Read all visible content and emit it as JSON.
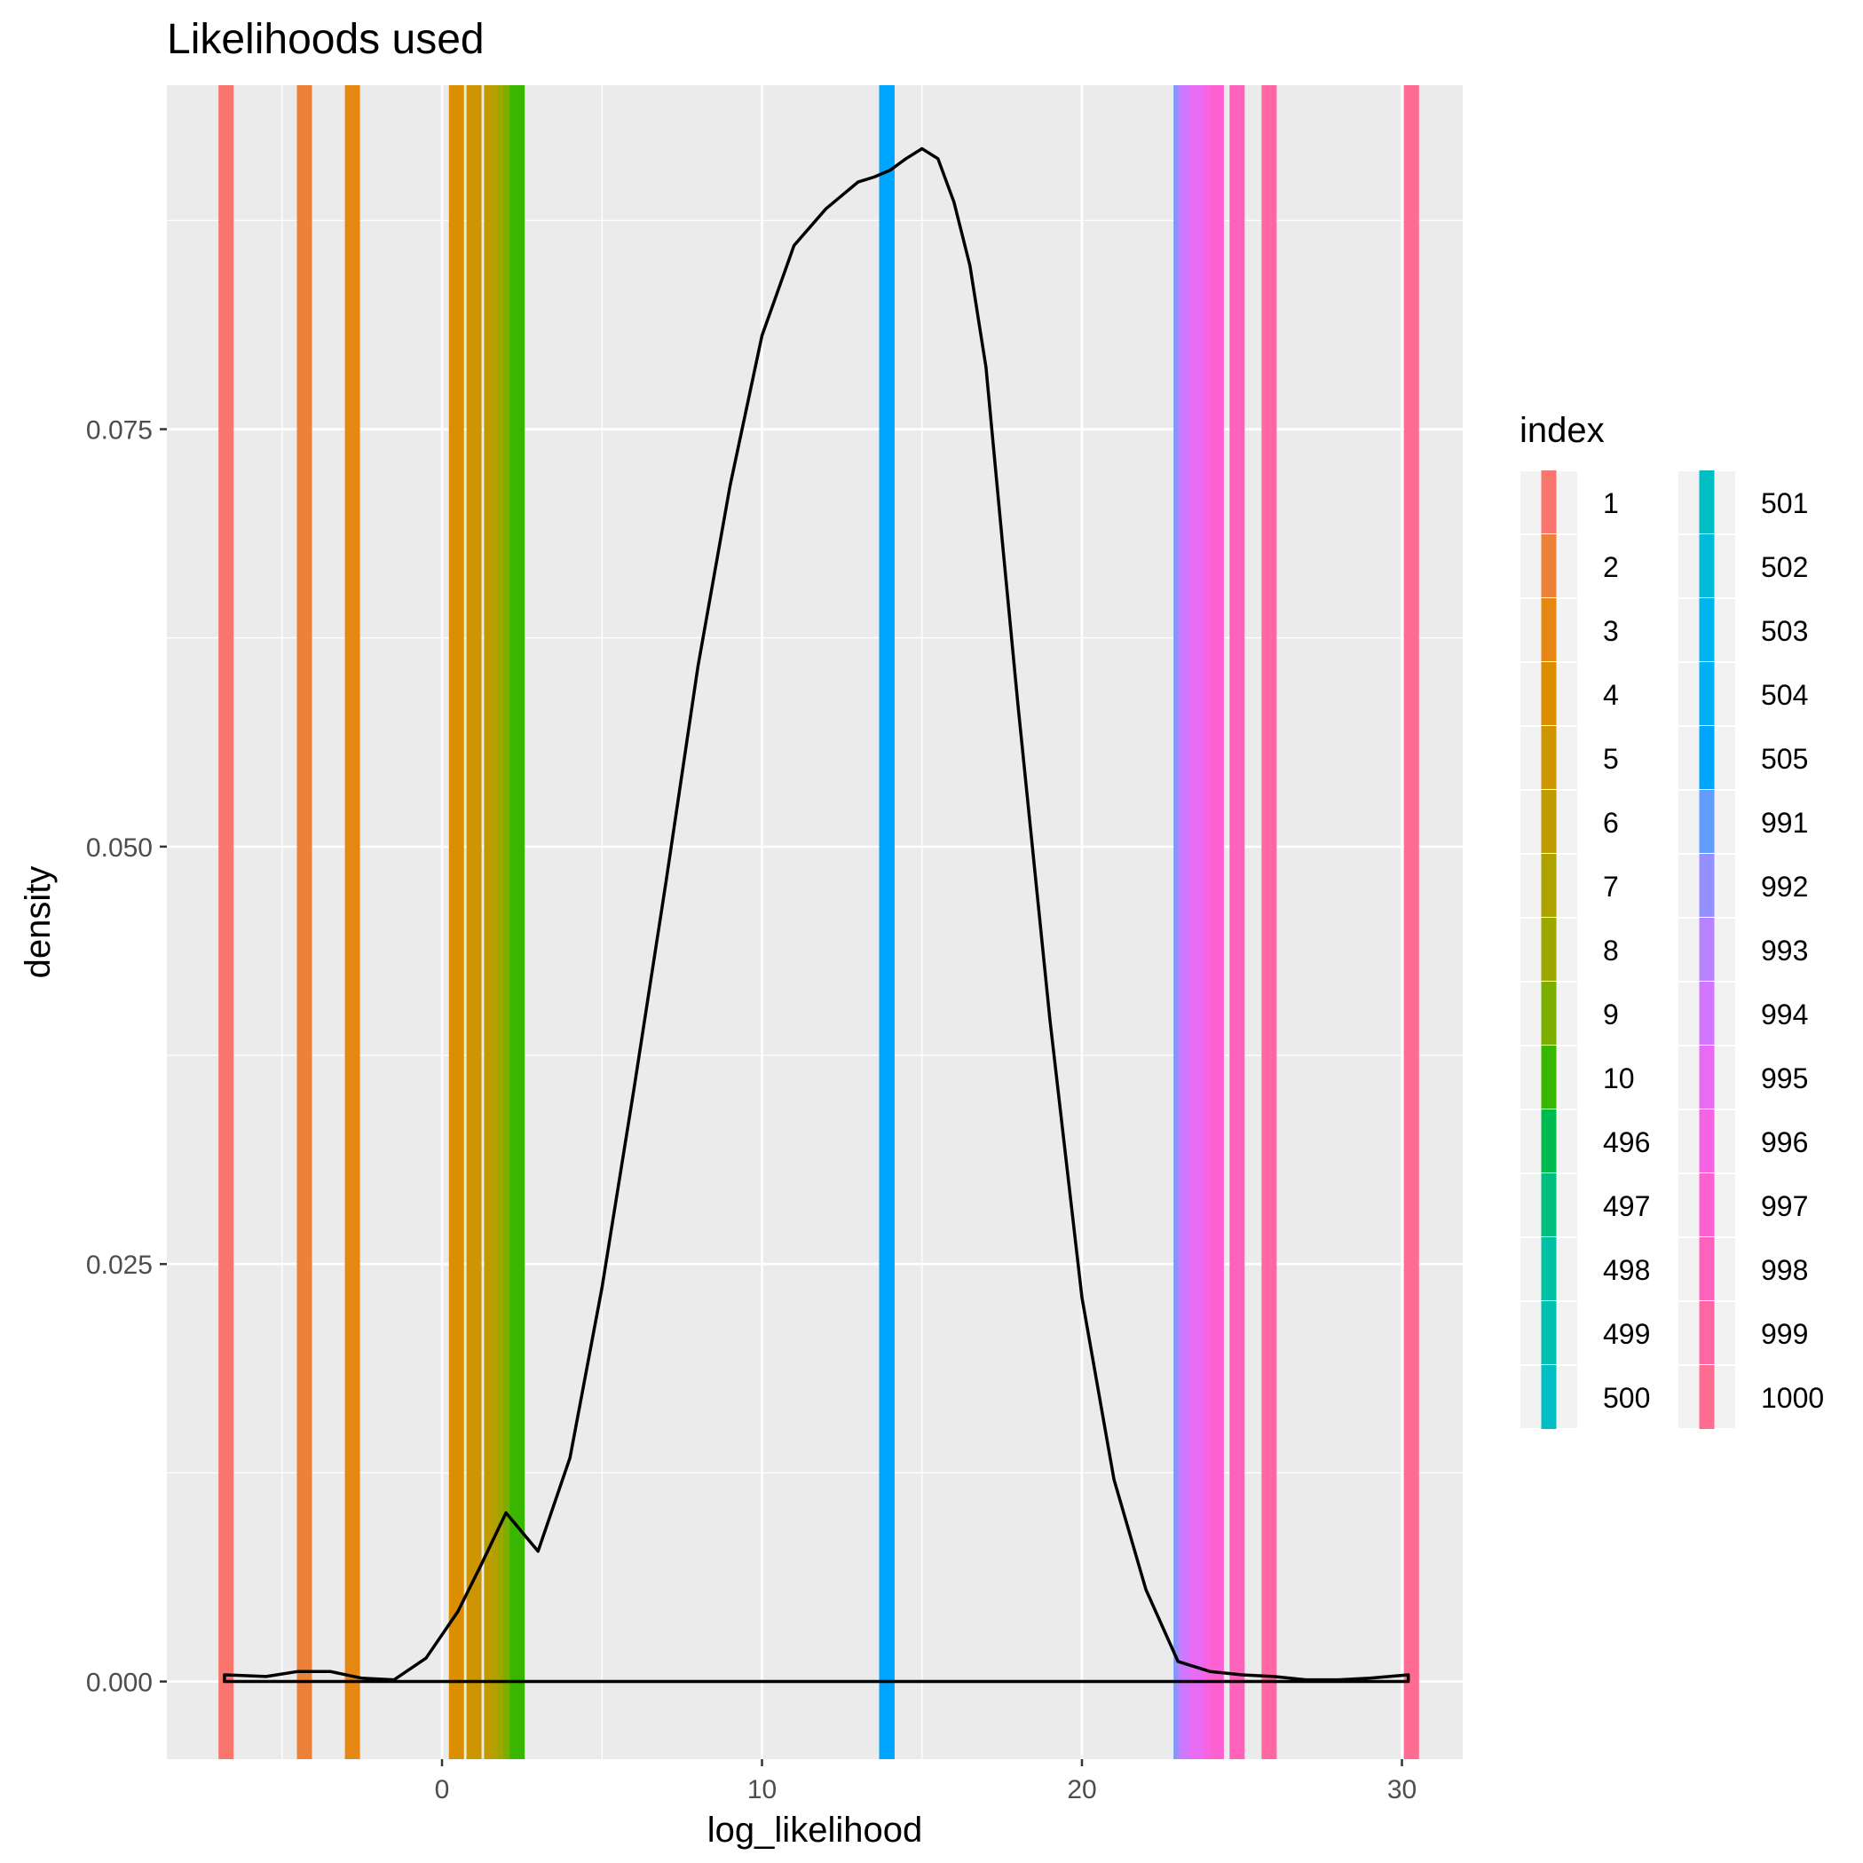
{
  "chart_data": {
    "type": "density",
    "title": "Likelihoods used",
    "xlabel": "log_likelihood",
    "ylabel": "density",
    "xlim": [
      -8.6,
      31.9
    ],
    "ylim": [
      -0.00465,
      0.0956
    ],
    "x_ticks": [
      0,
      10,
      20,
      30
    ],
    "x_tick_labels": [
      "0",
      "10",
      "20",
      "30"
    ],
    "y_ticks": [
      0,
      0.025,
      0.05,
      0.075
    ],
    "y_tick_labels": [
      "0.000",
      "0.025",
      "0.050",
      "0.075"
    ],
    "grid": true,
    "density_curve": {
      "color": "#000000",
      "x": [
        -6.8,
        -5.5,
        -4.5,
        -3.5,
        -2.5,
        -1.5,
        -0.5,
        0.5,
        1.2,
        2.0,
        3.0,
        4.0,
        5.0,
        6.0,
        7.0,
        8.0,
        9.0,
        10.0,
        11.0,
        12.0,
        12.5,
        13.0,
        13.5,
        14.0,
        14.5,
        15.0,
        15.5,
        16.0,
        16.5,
        17.0,
        17.5,
        18.0,
        19.0,
        20.0,
        21.0,
        22.0,
        23.0,
        24.0,
        25.0,
        26.0,
        27.0,
        28.0,
        29.0,
        30.2
      ],
      "y": [
        0.0004,
        0.0003,
        0.0006,
        0.0006,
        0.0002,
        0.0001,
        0.0014,
        0.0042,
        0.0069,
        0.0101,
        0.0078,
        0.0134,
        0.0236,
        0.0355,
        0.0479,
        0.0608,
        0.0716,
        0.0806,
        0.086,
        0.0882,
        0.089,
        0.0898,
        0.0901,
        0.0905,
        0.0912,
        0.0918,
        0.0912,
        0.0886,
        0.0848,
        0.0787,
        0.0685,
        0.0585,
        0.0396,
        0.023,
        0.0121,
        0.0055,
        0.0012,
        0.0006,
        0.0004,
        0.0003,
        0.0001,
        0.0001,
        0.0002,
        0.0004
      ]
    },
    "vlines_legend_title": "index",
    "vlines": [
      {
        "index": "1",
        "x": -6.75,
        "color": "#F8766D"
      },
      {
        "index": "2",
        "x": -4.3,
        "color": "#EC8239"
      },
      {
        "index": "3",
        "x": -2.8,
        "color": "#E68613"
      },
      {
        "index": "4",
        "x": 0.45,
        "color": "#DB8E00"
      },
      {
        "index": "5",
        "x": 1.0,
        "color": "#CD9600"
      },
      {
        "index": "6",
        "x": 1.55,
        "color": "#BE9C00"
      },
      {
        "index": "7",
        "x": 1.85,
        "color": "#AEA200"
      },
      {
        "index": "8",
        "x": 2.0,
        "color": "#9CA700"
      },
      {
        "index": "9",
        "x": 2.15,
        "color": "#7CAE00"
      },
      {
        "index": "10",
        "x": 2.35,
        "color": "#39B600"
      },
      {
        "index": "496",
        "x": 13.9,
        "color": "#00BB4E"
      },
      {
        "index": "497",
        "x": 13.9,
        "color": "#00BF7D"
      },
      {
        "index": "498",
        "x": 13.9,
        "color": "#00C1A3"
      },
      {
        "index": "499",
        "x": 13.9,
        "color": "#00C0AF"
      },
      {
        "index": "500",
        "x": 13.9,
        "color": "#00BFC4"
      },
      {
        "index": "501",
        "x": 13.9,
        "color": "#00BFC4"
      },
      {
        "index": "502",
        "x": 13.9,
        "color": "#00BCD8"
      },
      {
        "index": "503",
        "x": 13.9,
        "color": "#00B4EF"
      },
      {
        "index": "504",
        "x": 13.9,
        "color": "#00B0F6"
      },
      {
        "index": "505",
        "x": 13.9,
        "color": "#00A5FF"
      },
      {
        "index": "991",
        "x": 23.1,
        "color": "#619CFF"
      },
      {
        "index": "992",
        "x": 23.15,
        "color": "#9590FF"
      },
      {
        "index": "993",
        "x": 23.25,
        "color": "#B983FF"
      },
      {
        "index": "994",
        "x": 23.35,
        "color": "#D376FF"
      },
      {
        "index": "995",
        "x": 23.6,
        "color": "#E76BF3"
      },
      {
        "index": "996",
        "x": 24.0,
        "color": "#F564E3"
      },
      {
        "index": "997",
        "x": 24.2,
        "color": "#FD61D1"
      },
      {
        "index": "998",
        "x": 24.85,
        "color": "#FF62BC"
      },
      {
        "index": "999",
        "x": 25.85,
        "color": "#FF67A4"
      },
      {
        "index": "1000",
        "x": 30.3,
        "color": "#FF6C91"
      }
    ]
  }
}
